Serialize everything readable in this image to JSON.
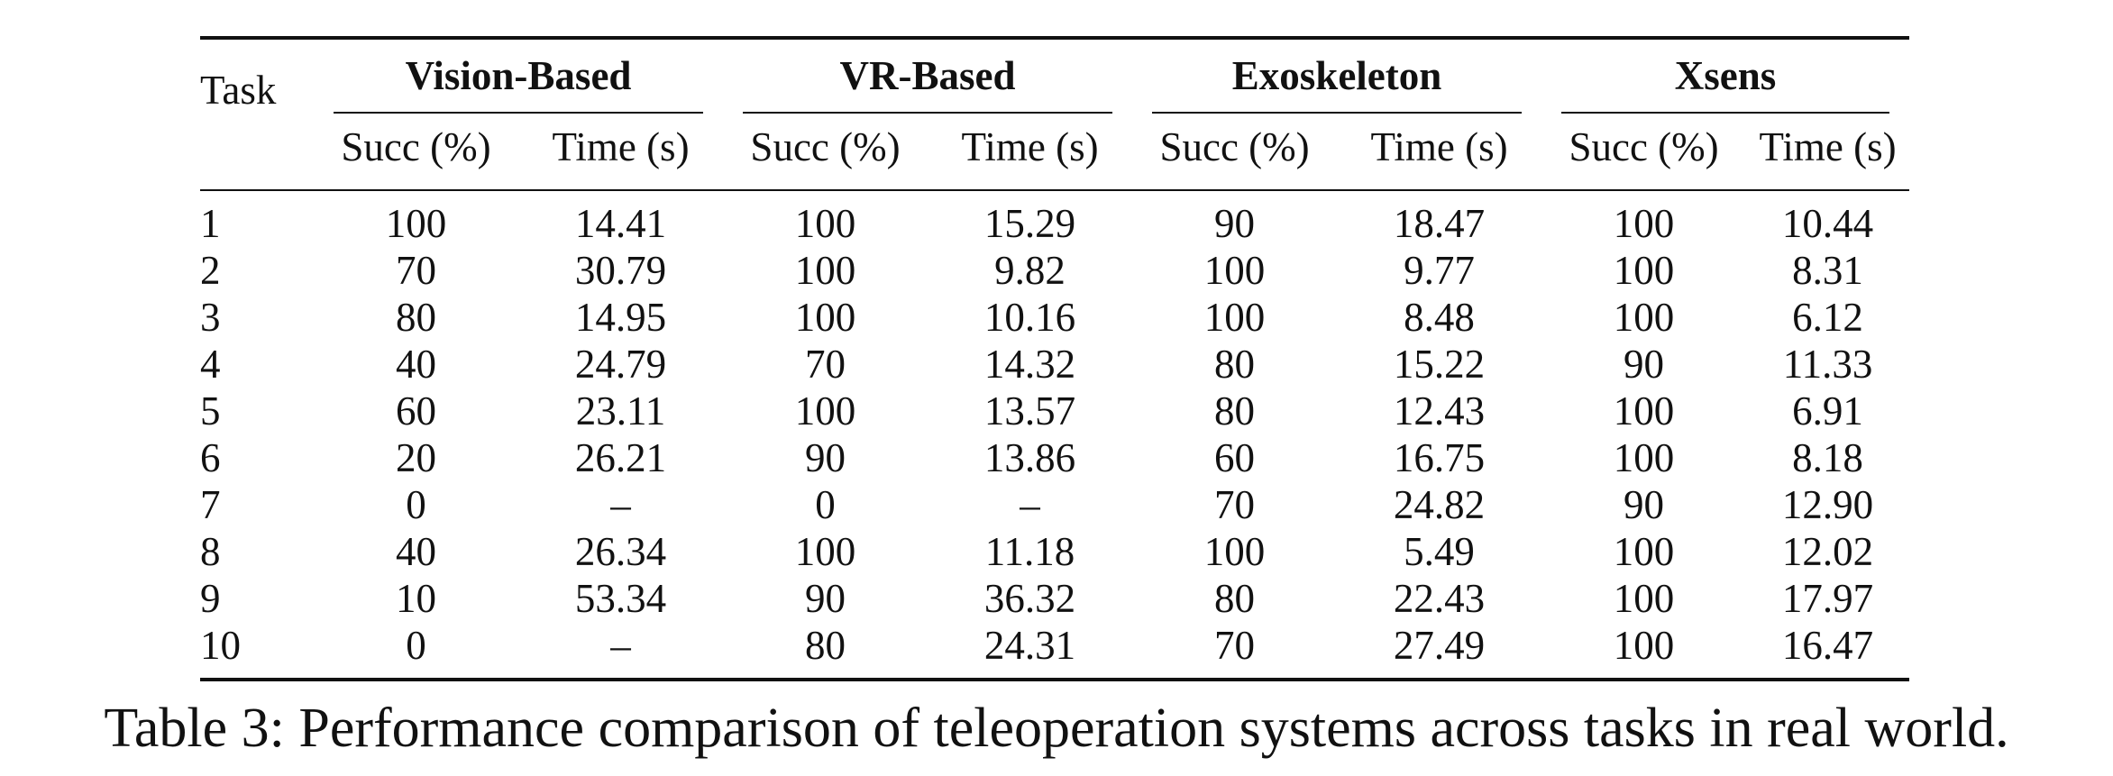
{
  "table": {
    "task_header": "Task",
    "groups": [
      "Vision-Based",
      "VR-Based",
      "Exoskeleton",
      "Xsens"
    ],
    "subheaders": [
      "Succ (%)",
      "Time (s)"
    ],
    "rows": [
      [
        "1",
        "100",
        "14.41",
        "100",
        "15.29",
        "90",
        "18.47",
        "100",
        "10.44"
      ],
      [
        "2",
        "70",
        "30.79",
        "100",
        "9.82",
        "100",
        "9.77",
        "100",
        "8.31"
      ],
      [
        "3",
        "80",
        "14.95",
        "100",
        "10.16",
        "100",
        "8.48",
        "100",
        "6.12"
      ],
      [
        "4",
        "40",
        "24.79",
        "70",
        "14.32",
        "80",
        "15.22",
        "90",
        "11.33"
      ],
      [
        "5",
        "60",
        "23.11",
        "100",
        "13.57",
        "80",
        "12.43",
        "100",
        "6.91"
      ],
      [
        "6",
        "20",
        "26.21",
        "90",
        "13.86",
        "60",
        "16.75",
        "100",
        "8.18"
      ],
      [
        "7",
        "0",
        "–",
        "0",
        "–",
        "70",
        "24.82",
        "90",
        "12.90"
      ],
      [
        "8",
        "40",
        "26.34",
        "100",
        "11.18",
        "100",
        "5.49",
        "100",
        "12.02"
      ],
      [
        "9",
        "10",
        "53.34",
        "90",
        "36.32",
        "80",
        "22.43",
        "100",
        "17.97"
      ],
      [
        "10",
        "0",
        "–",
        "80",
        "24.31",
        "70",
        "27.49",
        "100",
        "16.47"
      ]
    ]
  },
  "caption": "Table 3: Performance comparison of teleoperation systems across tasks in real world."
}
